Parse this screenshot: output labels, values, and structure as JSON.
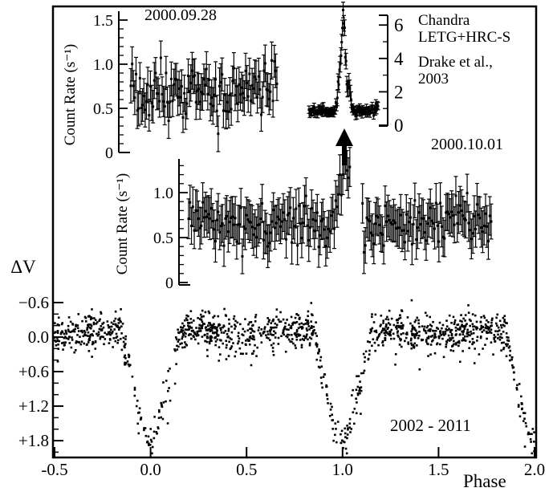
{
  "figure": {
    "background": "#ffffff",
    "ink": "#000000",
    "labels": {
      "inset1_date": "2000.09.28",
      "inset2_date": "2000.10.01",
      "years_range": "2002 - 2011",
      "delta_v": "ΔV",
      "phase": "Phase",
      "count_rate": "Count Rate (s⁻¹)"
    },
    "credit": {
      "line1": "Chandra",
      "line2": "LETG+HRC-S",
      "ref_line1": "Drake et al.,",
      "ref_line2": "2003"
    }
  },
  "chart_data": [
    {
      "id": "xray-lightcurve-2000-09-28",
      "type": "scatter",
      "marker": "square-with-errorbar",
      "title": "2000.09.28",
      "ylabel": "Count Rate (s⁻¹)",
      "ylim": [
        0,
        1.5
      ],
      "yticks": [
        0,
        0.5,
        1.0,
        1.5
      ],
      "ytick_labels": [
        "0",
        "0.5",
        "1.0",
        "1.5"
      ],
      "y_minor_step": 0.1,
      "x_axis_drawn": false,
      "grid": false,
      "series": {
        "name": "count rate 2000.09.28",
        "n_points": 113,
        "quiescent_mean": 0.6,
        "trend_over_window": 0.14,
        "noise_sigma": 0.13,
        "errorbar_half": 0.17,
        "value_range": [
          0.2,
          1.3
        ]
      }
    },
    {
      "id": "xray-flare-inset",
      "type": "scatter",
      "marker": "square-with-errorbar",
      "title": "",
      "axis_side": "right",
      "ylim": [
        0,
        6.9
      ],
      "yticks": [
        0,
        2,
        4,
        6
      ],
      "ytick_labels": [
        "0",
        "2",
        "4",
        "6"
      ],
      "y_minor_ticks": [
        1,
        3,
        5
      ],
      "grid": false,
      "annotations": [
        "Chandra",
        "LETG+HRC-S",
        "Drake et al.,",
        "2003"
      ],
      "series": {
        "name": "flare count rate",
        "n_points": 96,
        "quiescent_mean": 0.85,
        "flare_peak": 6.8,
        "post_flare_bump": 2.4,
        "noise_sigma": 0.13,
        "errorbar_half": 0.22,
        "value_range": [
          0.15,
          6.9
        ]
      }
    },
    {
      "id": "xray-lightcurve-2000-10-01",
      "type": "scatter",
      "marker": "square-with-errorbar",
      "title": "2000.10.01",
      "ylabel": "Count Rate (s⁻¹)",
      "ylim": [
        0,
        1.4
      ],
      "yticks": [
        0,
        0.5,
        1.0
      ],
      "ytick_labels": [
        "0",
        "0.5",
        "1.0"
      ],
      "y_minor_step": 0.1,
      "x_axis_drawn": false,
      "grid": false,
      "flare_marked_by_arrow": true,
      "series": {
        "name": "count rate 2000.10.01",
        "n_points": 215,
        "quiescent_mean": 0.66,
        "pre_gap_bump_peak": 1.25,
        "gap_present": true,
        "noise_sigma": 0.14,
        "errorbar_half": 0.19,
        "value_range": [
          0.17,
          1.42
        ]
      }
    },
    {
      "id": "optical-phased-lightcurve",
      "type": "scatter",
      "marker": "small-square",
      "annotation": "2002 - 2011",
      "xlabel": "Phase",
      "ylabel": "ΔV",
      "xlim": [
        -0.5,
        2.0
      ],
      "xticks": [
        -0.5,
        0.0,
        0.5,
        1.0,
        1.5,
        2.0
      ],
      "xtick_labels": [
        "-0.5",
        "0.0",
        "0.5",
        "1.0",
        "1.5",
        "2.0"
      ],
      "yticks": [
        -0.6,
        0.0,
        0.6,
        1.2,
        1.8
      ],
      "ytick_labels": [
        "−0.6",
        "0.0",
        "+0.6",
        "+1.2",
        "+1.8"
      ],
      "y_minor_step": 0.2,
      "y_axis_inverted_magnitudes": true,
      "grid": false,
      "series": {
        "name": "V-band differential magnitude 2002-2011",
        "n_points": 1500,
        "out_of_eclipse_mean": -0.08,
        "ellipsoidal_amplitude": 0.1,
        "scatter_sigma": 0.15,
        "primary_eclipse": {
          "phases": [
            0.0,
            1.0,
            2.0
          ],
          "depth_mag": 1.88,
          "half_width_phase": 0.148
        },
        "value_range": [
          -0.66,
          2.02
        ]
      }
    }
  ]
}
